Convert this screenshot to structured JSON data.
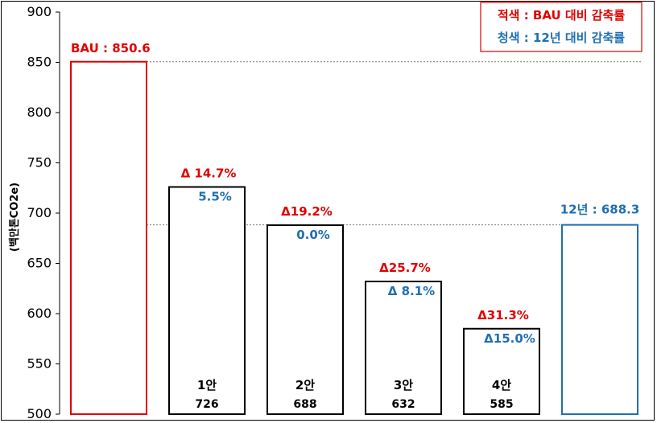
{
  "chart_data": {
    "type": "bar",
    "ylabel": "(백만톤CO2e)",
    "ylim": [
      500,
      900
    ],
    "yticks": [
      500,
      550,
      600,
      650,
      700,
      750,
      800,
      850,
      900
    ],
    "grid": false,
    "reference_lines": [
      850.6,
      688.3
    ],
    "legend": {
      "placement": "top-right",
      "entries": [
        {
          "text": "적색 : BAU  대비 감축률",
          "color": "#e00000"
        },
        {
          "text": "청색 : 12년 대비 감축률",
          "color": "#1f6fb2"
        }
      ]
    },
    "bars": [
      {
        "name": "BAU",
        "value": 850.6,
        "edge_color": "#e00000",
        "top_label_red": "BAU : 850.6",
        "top_label_blue": "",
        "category": "",
        "value_text": ""
      },
      {
        "name": "1안",
        "value": 726,
        "edge_color": "#000000",
        "top_label_red": "Δ 14.7%",
        "top_label_blue": "5.5%",
        "category": "1안",
        "value_text": "726"
      },
      {
        "name": "2안",
        "value": 688,
        "edge_color": "#000000",
        "top_label_red": "Δ19.2%",
        "top_label_blue": "0.0%",
        "category": "2안",
        "value_text": "688"
      },
      {
        "name": "3안",
        "value": 632,
        "edge_color": "#000000",
        "top_label_red": "Δ25.7%",
        "top_label_blue": "Δ  8.1%",
        "category": "3안",
        "value_text": "632"
      },
      {
        "name": "4안",
        "value": 585,
        "edge_color": "#000000",
        "top_label_red": "Δ31.3%",
        "top_label_blue": "Δ15.0%",
        "category": "4안",
        "value_text": "585"
      },
      {
        "name": "12년",
        "value": 688.3,
        "edge_color": "#1f6fb2",
        "top_label_red": "",
        "top_label_blue": "12년 : 688.3",
        "category": "",
        "value_text": ""
      }
    ]
  }
}
